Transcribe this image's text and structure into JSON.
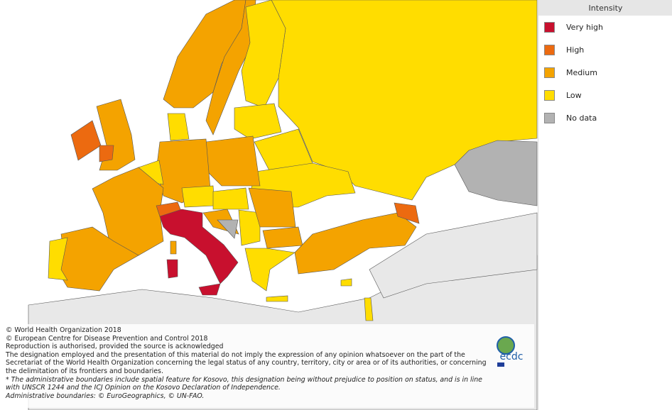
{
  "legend": {
    "title": "Intensity",
    "items": [
      {
        "label": "Very high",
        "color": "#c8102e"
      },
      {
        "label": "High",
        "color": "#ec6a10"
      },
      {
        "label": "Medium",
        "color": "#f4a300"
      },
      {
        "label": "Low",
        "color": "#ffdd00"
      },
      {
        "label": "No data",
        "color": "#b2b2b2"
      }
    ]
  },
  "footer": {
    "lines": [
      "© World Health Organization 2018",
      "© European Centre for Disease Prevention and Control 2018",
      "Reproduction is authorised, provided the source is acknowledged",
      "The designation employed and the presentation of this material do not imply the expression of any opinion whatsoever on the part of the Secretariat of the World Health Organization concerning the legal status of any country, territory, city or area or of its authorities, or concerning the delimitation of its frontiers and boundaries."
    ],
    "notes": [
      "* The administrative boundaries include spatial feature for Kosovo, this designation being without prejudice to position on status, and is in line with UNSCR 1244 and the ICJ Opinion on the Kosovo Declaration of Independence.",
      "Administrative boundaries: © EuroGeographics, © UN-FAO."
    ]
  },
  "logo": {
    "text": "ecdc"
  }
}
